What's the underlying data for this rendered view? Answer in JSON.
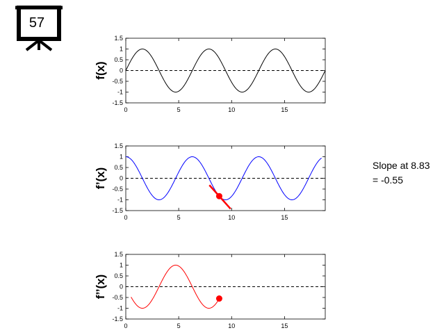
{
  "slide": {
    "number": "57"
  },
  "annotation": {
    "line1": "Slope at 8.83",
    "line2": "= -0.55"
  },
  "colors": {
    "f": "#000000",
    "fprime": "#0000ff",
    "fdoubleprime": "#ff0000",
    "marker": "#ff0000",
    "zero_line": "#000000"
  },
  "chart_data": [
    {
      "type": "line",
      "title": "",
      "xlabel": "",
      "ylabel": "f(x)",
      "xlim": [
        0,
        18.85
      ],
      "ylim": [
        -1.5,
        1.5
      ],
      "xticks": [
        0,
        5,
        10,
        15
      ],
      "yticks": [
        -1.5,
        -1,
        -0.5,
        0,
        0.5,
        1,
        1.5
      ],
      "function": "sin(x)",
      "x_range": [
        0,
        18.85
      ],
      "zero_line": "dashed",
      "grid": false
    },
    {
      "type": "line",
      "title": "",
      "xlabel": "",
      "ylabel": "f’(x)",
      "xlim": [
        0,
        18.85
      ],
      "ylim": [
        -1.5,
        1.5
      ],
      "xticks": [
        0,
        5,
        10,
        15
      ],
      "yticks": [
        -1.5,
        -1,
        -0.5,
        0,
        0.5,
        1,
        1.5
      ],
      "function": "cos(x)",
      "x_range": [
        0,
        18.5
      ],
      "zero_line": "dashed",
      "grid": false,
      "point": {
        "x": 8.83,
        "y": -0.83
      },
      "tangent": {
        "x": 8.83,
        "y": -0.83,
        "slope": -0.55,
        "x_from": 7.9,
        "x_to": 9.9
      }
    },
    {
      "type": "line",
      "title": "",
      "xlabel": "",
      "ylabel": "f’’(x)",
      "xlim": [
        0,
        18.85
      ],
      "ylim": [
        -1.5,
        1.5
      ],
      "xticks": [
        0,
        5,
        10,
        15
      ],
      "yticks": [
        -1.5,
        -1,
        -0.5,
        0,
        0.5,
        1,
        1.5
      ],
      "function": "-sin(x)",
      "x_range": [
        0.5,
        8.83
      ],
      "zero_line": "dashed",
      "grid": false,
      "point": {
        "x": 8.83,
        "y": -0.55
      }
    }
  ]
}
